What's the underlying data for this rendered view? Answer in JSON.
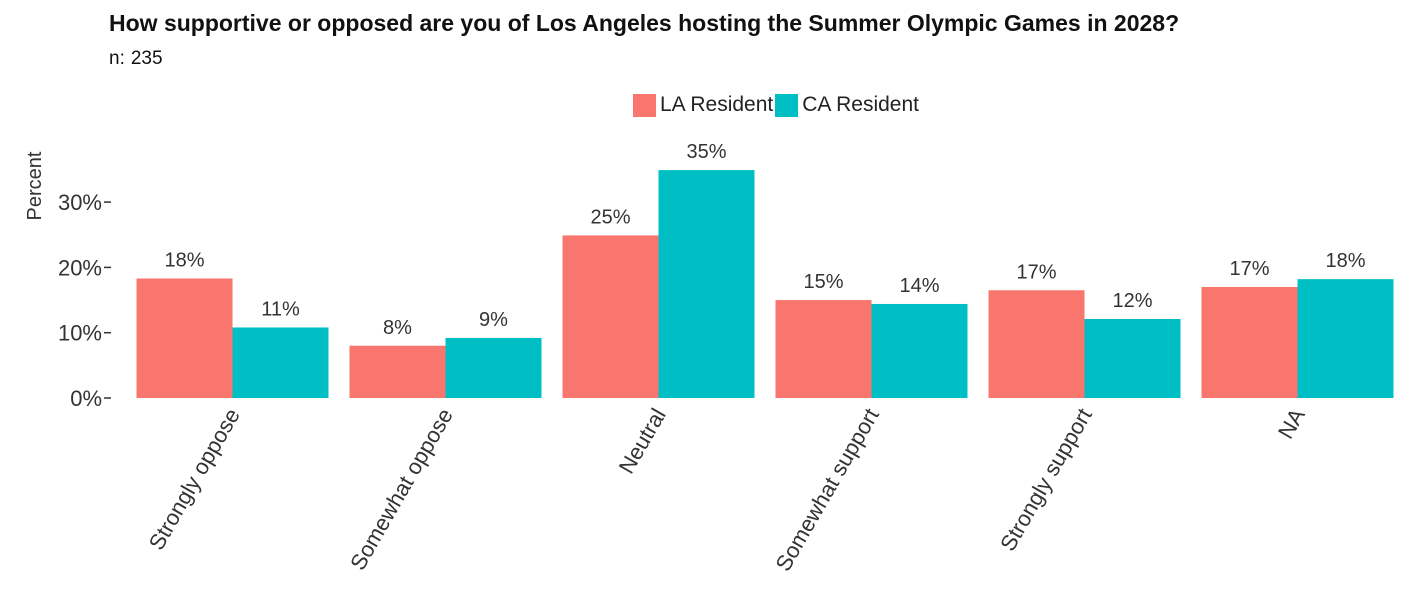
{
  "header": {
    "title": "How supportive or opposed are you of Los Angeles hosting the Summer Olympic Games in 2028?",
    "n_label": "n:",
    "n_value": "235"
  },
  "legend": {
    "items": [
      {
        "label": "LA Resident",
        "color": "#F8766D"
      },
      {
        "label": "CA Resident",
        "color": "#00BFC4"
      }
    ]
  },
  "chart_data": {
    "type": "bar",
    "title": "How supportive or opposed are you of Los Angeles hosting the Summer Olympic Games in 2028?",
    "xlabel": "",
    "ylabel": "Percent",
    "ylim": [
      0,
      35
    ],
    "yticks": [
      0,
      10,
      20,
      30
    ],
    "ytick_labels": [
      "0%",
      "10%",
      "20%",
      "30%"
    ],
    "categories": [
      "Strongly oppose",
      "Somewhat oppose",
      "Neutral",
      "Somewhat support",
      "Strongly support",
      "NA"
    ],
    "series": [
      {
        "name": "LA Resident",
        "color": "#F8766D",
        "values": [
          18.3,
          8.0,
          24.9,
          15.0,
          16.5,
          17.0
        ],
        "labels": [
          "18%",
          "8%",
          "25%",
          "15%",
          "17%",
          "17%"
        ]
      },
      {
        "name": "CA Resident",
        "color": "#00BFC4",
        "values": [
          10.8,
          9.2,
          34.9,
          14.4,
          12.1,
          18.2
        ],
        "labels": [
          "11%",
          "9%",
          "35%",
          "14%",
          "12%",
          "18%"
        ]
      }
    ],
    "legend_position": "top-center",
    "grid": false
  }
}
